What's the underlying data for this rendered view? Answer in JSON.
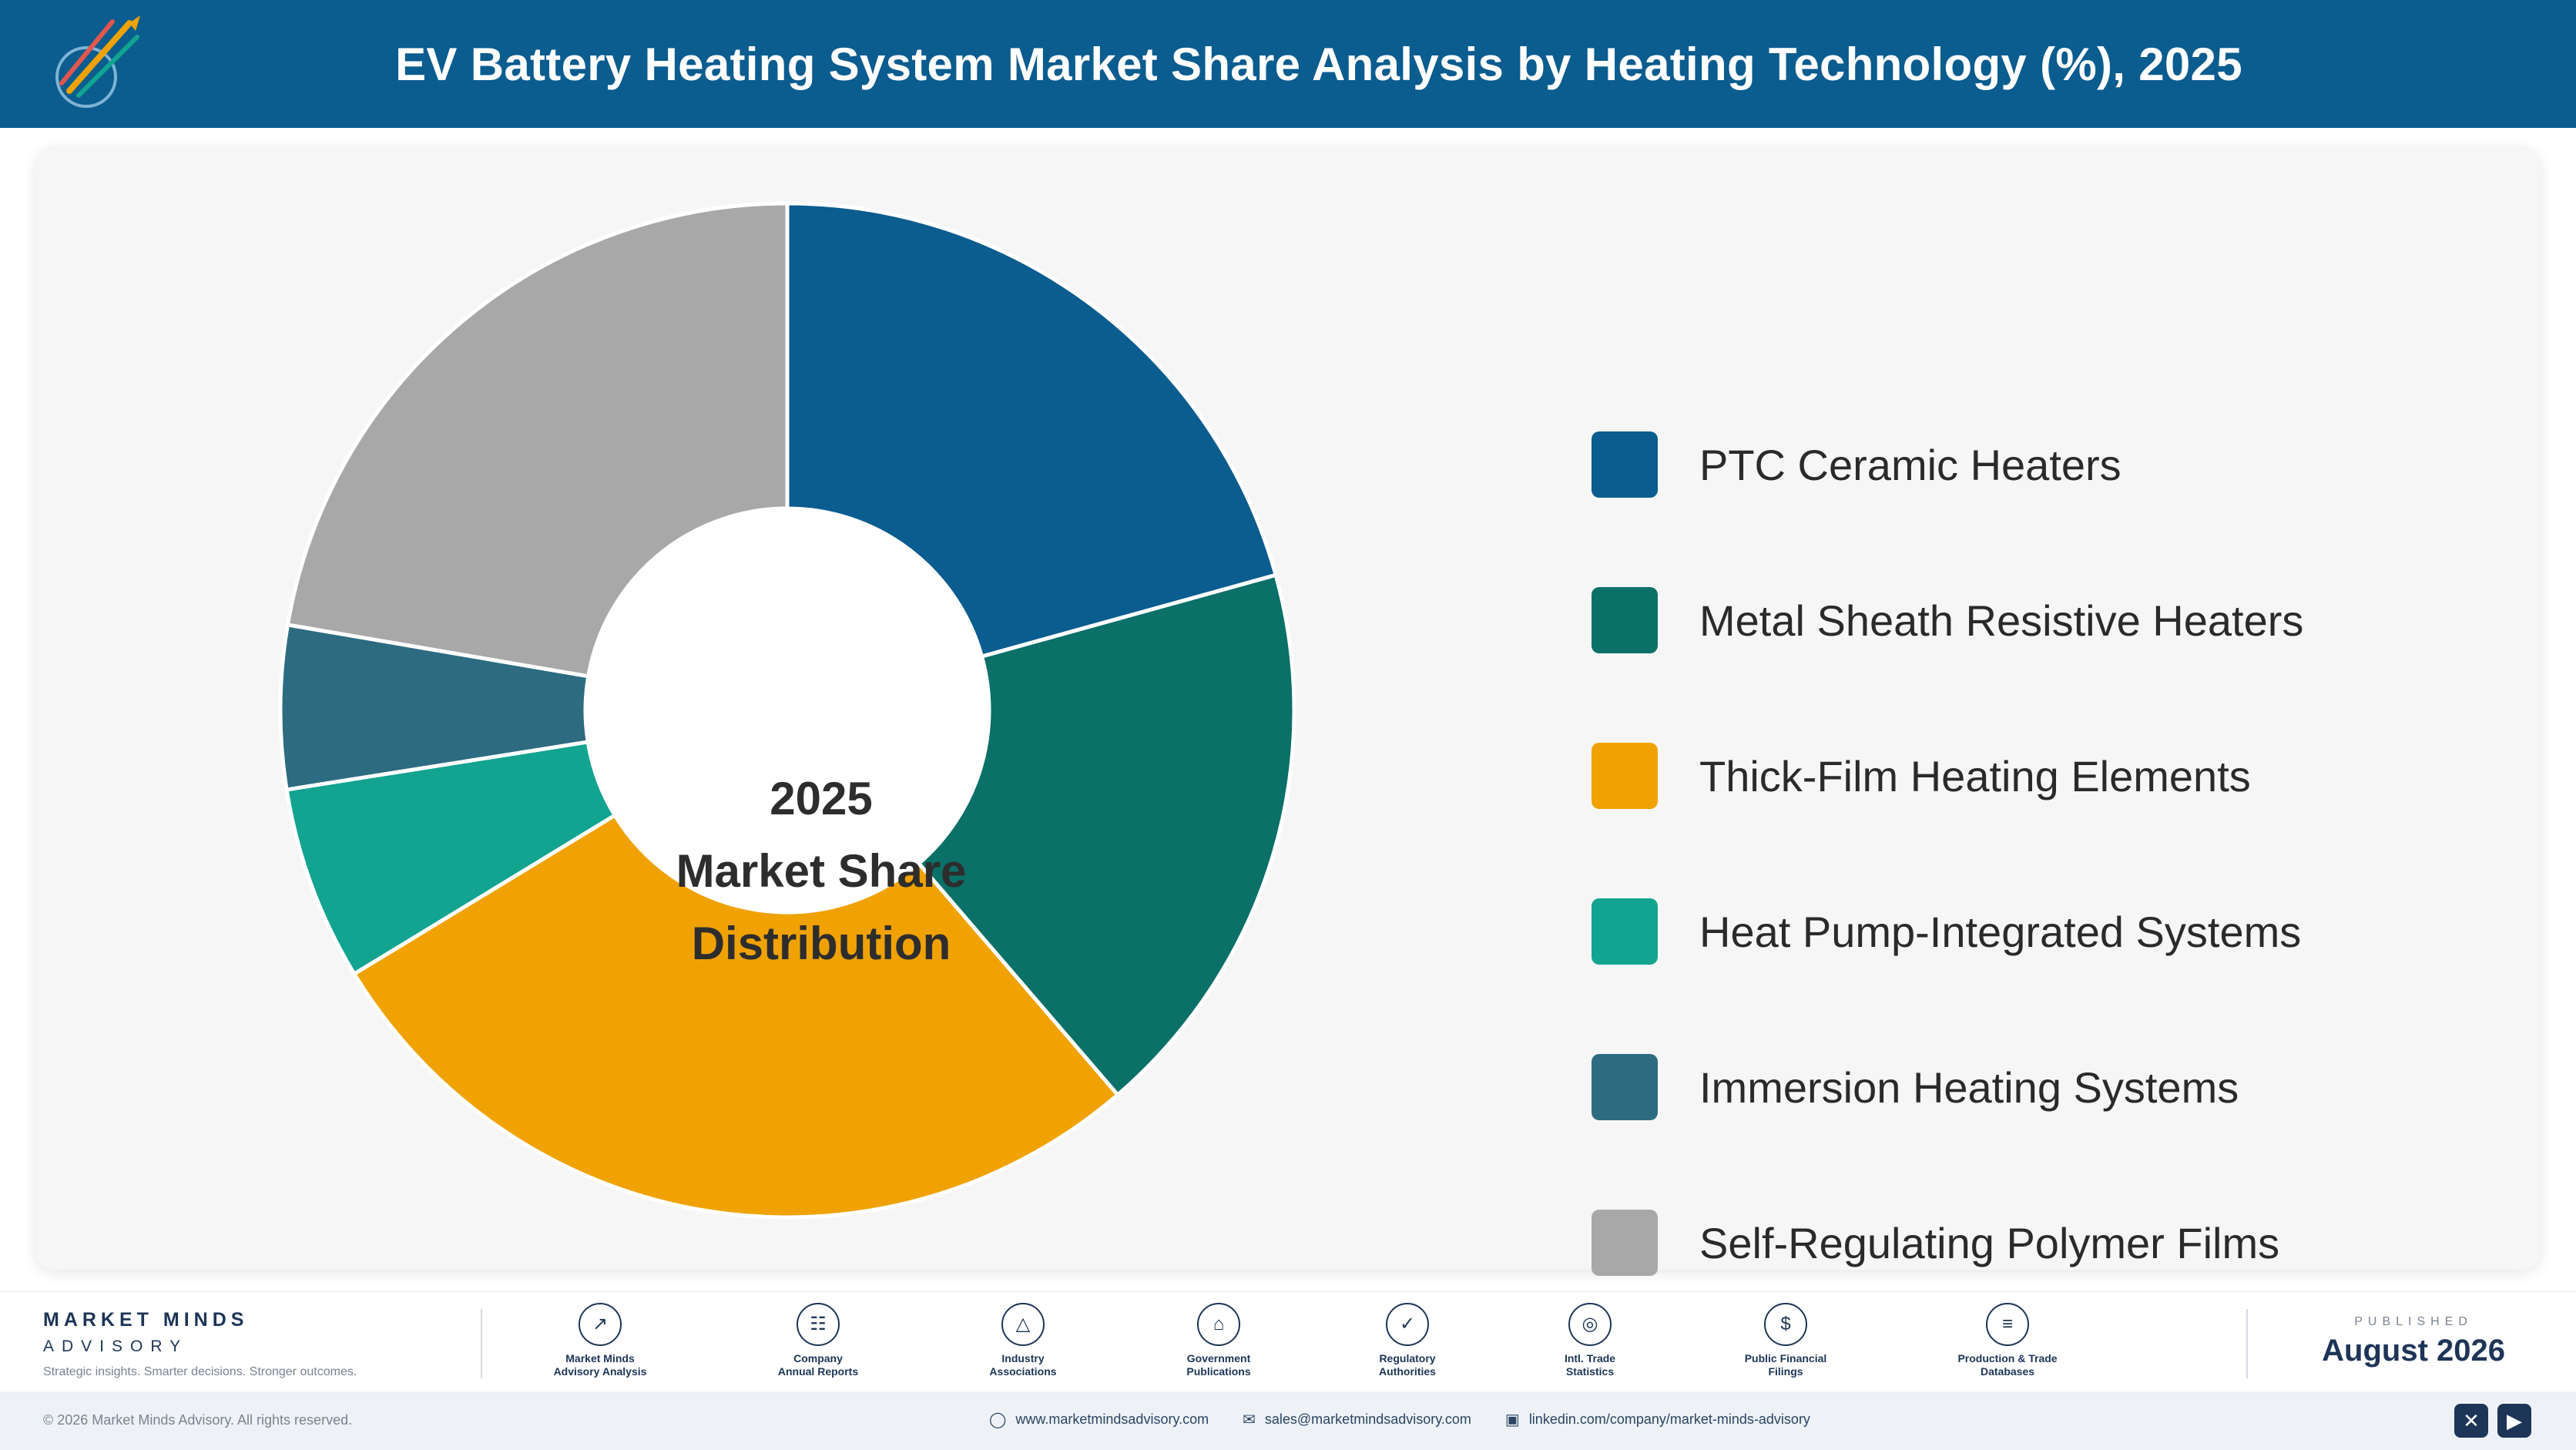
{
  "header": {
    "title": "EV Battery Heating System Market Share Analysis by Heating Technology (%), 2025"
  },
  "chart_data": {
    "type": "pie",
    "donut": true,
    "center_label": [
      "2025",
      "Market Share",
      "Distribution"
    ],
    "categories": [
      "PTC Ceramic Heaters",
      "Metal Sheath Resistive Heaters",
      "Thick-Film Heating Elements",
      "Heat Pump-Integrated Systems",
      "Immersion Heating Systems",
      "Self-Regulating Polymer Films"
    ],
    "values": [
      20.7,
      18.0,
      27.6,
      6.2,
      5.2,
      22.3
    ],
    "colors": [
      "#0b5c8f",
      "#0b7068",
      "#f0a202",
      "#12a391",
      "#2d6b80",
      "#a8a8a8"
    ],
    "legend_position": "right"
  },
  "footer": {
    "brand": {
      "name": "MARKET MINDS",
      "sub": "ADVISORY",
      "tagline": "Strategic insights. Smarter decisions. Stronger outcomes."
    },
    "sources": [
      {
        "icon": "trend-chart-icon",
        "glyph": "↗",
        "label": "Market Minds\nAdvisory Analysis"
      },
      {
        "icon": "document-icon",
        "glyph": "☷",
        "label": "Company\nAnnual Reports"
      },
      {
        "icon": "network-icon",
        "glyph": "△",
        "label": "Industry\nAssociations"
      },
      {
        "icon": "government-building-icon",
        "glyph": "⌂",
        "label": "Government\nPublications"
      },
      {
        "icon": "shield-check-icon",
        "glyph": "✓",
        "label": "Regulatory\nAuthorities"
      },
      {
        "icon": "globe-icon",
        "glyph": "◎",
        "label": "Intl. Trade\nStatistics"
      },
      {
        "icon": "currency-icon",
        "glyph": "$",
        "label": "Public Financial\nFilings"
      },
      {
        "icon": "database-icon",
        "glyph": "≡",
        "label": "Production & Trade\nDatabases"
      }
    ],
    "published_label": "PUBLISHED",
    "published_date": "August 2026",
    "copyright": "© 2026 Market Minds Advisory. All rights reserved.",
    "website": "www.marketmindsadvisory.com",
    "email": "sales@marketmindsadvisory.com",
    "linkedin": "linkedin.com/company/market-minds-advisory"
  }
}
